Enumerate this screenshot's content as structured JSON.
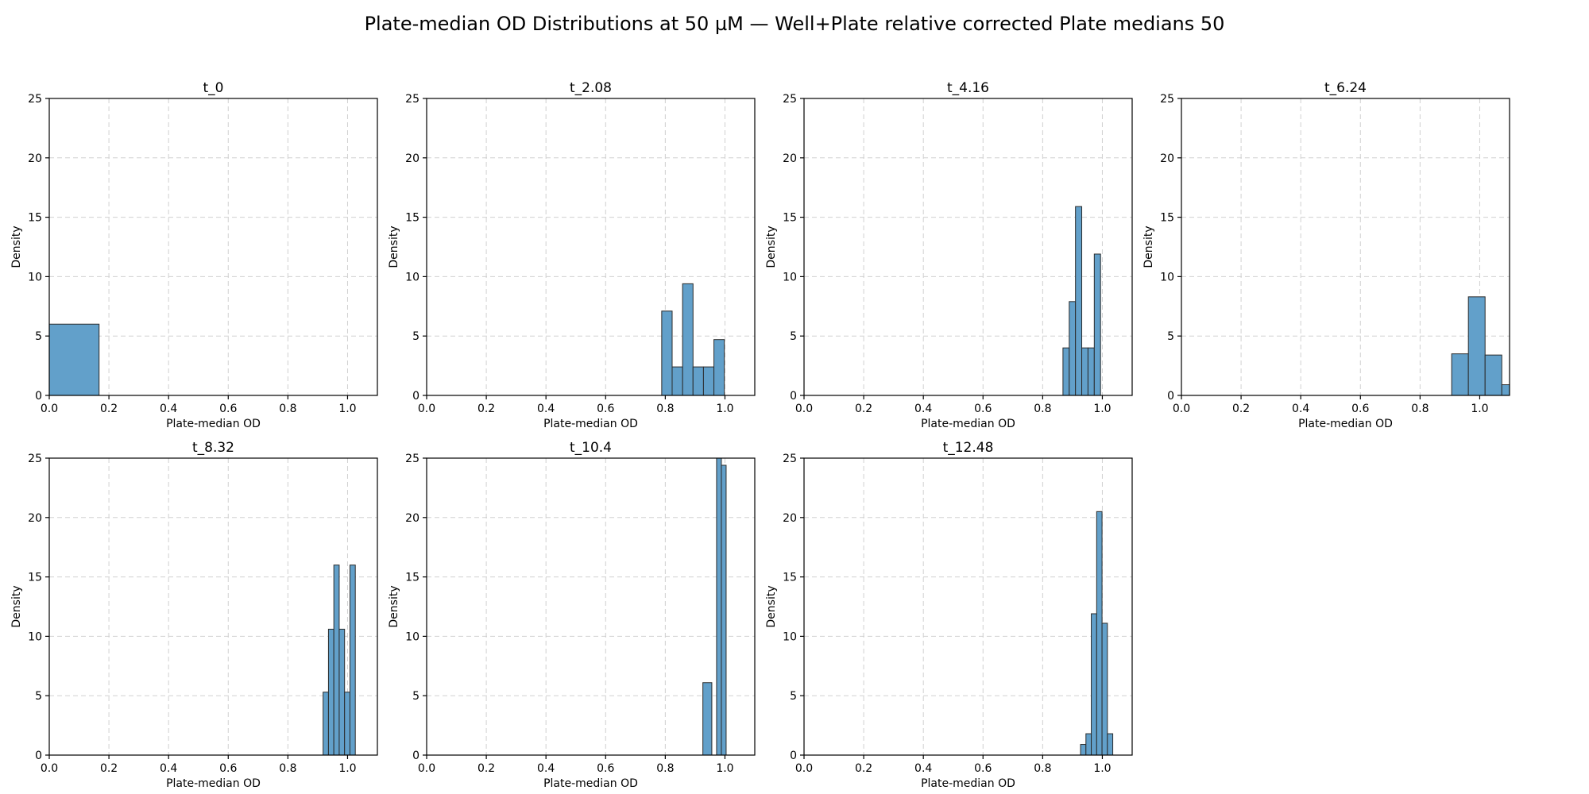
{
  "suptitle": "Plate-median OD Distributions at 50 µM — Well+Plate relative corrected Plate medians 50",
  "colors": {
    "bar_fill": "#62a0ca",
    "bar_edge": "#2b2b2b"
  },
  "chart_data": [
    {
      "type": "bar",
      "title": "t_0",
      "xlabel": "Plate-median OD",
      "ylabel": "Density",
      "xlim": [
        0,
        1.1
      ],
      "ylim": [
        0,
        25
      ],
      "grid": true,
      "xticks": [
        0.0,
        0.2,
        0.4,
        0.6,
        0.8,
        1.0
      ],
      "xtick_labels": [
        "0.0",
        "0.2",
        "0.4",
        "0.6",
        "0.8",
        "1.0"
      ],
      "yticks": [
        0,
        5,
        10,
        15,
        20,
        25
      ],
      "ytick_labels": [
        "0",
        "5",
        "10",
        "15",
        "20",
        "25"
      ],
      "bins": [
        {
          "x0": 0.0,
          "x1": 0.167,
          "density": 6.0
        }
      ]
    },
    {
      "type": "bar",
      "title": "t_2.08",
      "xlabel": "Plate-median OD",
      "ylabel": "Density",
      "xlim": [
        0,
        1.1
      ],
      "ylim": [
        0,
        25
      ],
      "grid": true,
      "xticks": [
        0.0,
        0.2,
        0.4,
        0.6,
        0.8,
        1.0
      ],
      "xtick_labels": [
        "0.0",
        "0.2",
        "0.4",
        "0.6",
        "0.8",
        "1.0"
      ],
      "yticks": [
        0,
        5,
        10,
        15,
        20,
        25
      ],
      "ytick_labels": [
        "0",
        "5",
        "10",
        "15",
        "20",
        "25"
      ],
      "bins": [
        {
          "x0": 0.788,
          "x1": 0.823,
          "density": 7.1
        },
        {
          "x0": 0.823,
          "x1": 0.858,
          "density": 2.4
        },
        {
          "x0": 0.858,
          "x1": 0.893,
          "density": 9.4
        },
        {
          "x0": 0.893,
          "x1": 0.928,
          "density": 2.4
        },
        {
          "x0": 0.928,
          "x1": 0.963,
          "density": 2.4
        },
        {
          "x0": 0.963,
          "x1": 0.998,
          "density": 4.7
        }
      ]
    },
    {
      "type": "bar",
      "title": "t_4.16",
      "xlabel": "Plate-median OD",
      "ylabel": "Density",
      "xlim": [
        0,
        1.1
      ],
      "ylim": [
        0,
        25
      ],
      "grid": true,
      "xticks": [
        0.0,
        0.2,
        0.4,
        0.6,
        0.8,
        1.0
      ],
      "xtick_labels": [
        "0.0",
        "0.2",
        "0.4",
        "0.6",
        "0.8",
        "1.0"
      ],
      "yticks": [
        0,
        5,
        10,
        15,
        20,
        25
      ],
      "ytick_labels": [
        "0",
        "5",
        "10",
        "15",
        "20",
        "25"
      ],
      "bins": [
        {
          "x0": 0.868,
          "x1": 0.889,
          "density": 4.0
        },
        {
          "x0": 0.889,
          "x1": 0.91,
          "density": 7.9
        },
        {
          "x0": 0.91,
          "x1": 0.931,
          "density": 15.9
        },
        {
          "x0": 0.931,
          "x1": 0.952,
          "density": 4.0
        },
        {
          "x0": 0.952,
          "x1": 0.973,
          "density": 4.0
        },
        {
          "x0": 0.973,
          "x1": 0.994,
          "density": 11.9
        }
      ]
    },
    {
      "type": "bar",
      "title": "t_6.24",
      "xlabel": "Plate-median OD",
      "ylabel": "Density",
      "xlim": [
        0,
        1.1
      ],
      "ylim": [
        0,
        25
      ],
      "grid": true,
      "xticks": [
        0.0,
        0.2,
        0.4,
        0.6,
        0.8,
        1.0
      ],
      "xtick_labels": [
        "0.0",
        "0.2",
        "0.4",
        "0.6",
        "0.8",
        "1.0"
      ],
      "yticks": [
        0,
        5,
        10,
        15,
        20,
        25
      ],
      "ytick_labels": [
        "0",
        "5",
        "10",
        "15",
        "20",
        "25"
      ],
      "bins": [
        {
          "x0": 0.906,
          "x1": 0.962,
          "density": 3.5
        },
        {
          "x0": 0.962,
          "x1": 1.018,
          "density": 8.3
        },
        {
          "x0": 1.018,
          "x1": 1.074,
          "density": 3.4
        },
        {
          "x0": 1.074,
          "x1": 1.13,
          "density": 0.9
        }
      ]
    },
    {
      "type": "bar",
      "title": "t_8.32",
      "xlabel": "Plate-median OD",
      "ylabel": "Density",
      "xlim": [
        0,
        1.1
      ],
      "ylim": [
        0,
        25
      ],
      "grid": true,
      "xticks": [
        0.0,
        0.2,
        0.4,
        0.6,
        0.8,
        1.0
      ],
      "xtick_labels": [
        "0.0",
        "0.2",
        "0.4",
        "0.6",
        "0.8",
        "1.0"
      ],
      "yticks": [
        0,
        5,
        10,
        15,
        20,
        25
      ],
      "ytick_labels": [
        "0",
        "5",
        "10",
        "15",
        "20",
        "25"
      ],
      "bins": [
        {
          "x0": 0.918,
          "x1": 0.936,
          "density": 5.3
        },
        {
          "x0": 0.936,
          "x1": 0.954,
          "density": 10.6
        },
        {
          "x0": 0.954,
          "x1": 0.972,
          "density": 16.0
        },
        {
          "x0": 0.972,
          "x1": 0.99,
          "density": 10.6
        },
        {
          "x0": 0.99,
          "x1": 1.008,
          "density": 5.3
        },
        {
          "x0": 1.008,
          "x1": 1.026,
          "density": 16.0
        }
      ]
    },
    {
      "type": "bar",
      "title": "t_10.4",
      "xlabel": "Plate-median OD",
      "ylabel": "Density",
      "xlim": [
        0,
        1.1
      ],
      "ylim": [
        0,
        25
      ],
      "grid": true,
      "xticks": [
        0.0,
        0.2,
        0.4,
        0.6,
        0.8,
        1.0
      ],
      "xtick_labels": [
        "0.0",
        "0.2",
        "0.4",
        "0.6",
        "0.8",
        "1.0"
      ],
      "yticks": [
        0,
        5,
        10,
        15,
        20,
        25
      ],
      "ytick_labels": [
        "0",
        "5",
        "10",
        "15",
        "20",
        "25"
      ],
      "bins": [
        {
          "x0": 0.926,
          "x1": 0.956,
          "density": 6.1
        },
        {
          "x0": 0.956,
          "x1": 0.972,
          "density": 0.0
        },
        {
          "x0": 0.972,
          "x1": 0.988,
          "density": 25.0
        },
        {
          "x0": 0.988,
          "x1": 1.004,
          "density": 24.4
        }
      ]
    },
    {
      "type": "bar",
      "title": "t_12.48",
      "xlabel": "Plate-median OD",
      "ylabel": "Density",
      "xlim": [
        0,
        1.1
      ],
      "ylim": [
        0,
        25
      ],
      "grid": true,
      "xticks": [
        0.0,
        0.2,
        0.4,
        0.6,
        0.8,
        1.0
      ],
      "xtick_labels": [
        "0.0",
        "0.2",
        "0.4",
        "0.6",
        "0.8",
        "1.0"
      ],
      "yticks": [
        0,
        5,
        10,
        15,
        20,
        25
      ],
      "ytick_labels": [
        "0",
        "5",
        "10",
        "15",
        "20",
        "25"
      ],
      "bins": [
        {
          "x0": 0.927,
          "x1": 0.945,
          "density": 0.9
        },
        {
          "x0": 0.945,
          "x1": 0.963,
          "density": 1.8
        },
        {
          "x0": 0.963,
          "x1": 0.981,
          "density": 11.9
        },
        {
          "x0": 0.981,
          "x1": 0.999,
          "density": 20.5
        },
        {
          "x0": 0.999,
          "x1": 1.017,
          "density": 11.1
        },
        {
          "x0": 1.017,
          "x1": 1.035,
          "density": 1.8
        }
      ]
    }
  ]
}
